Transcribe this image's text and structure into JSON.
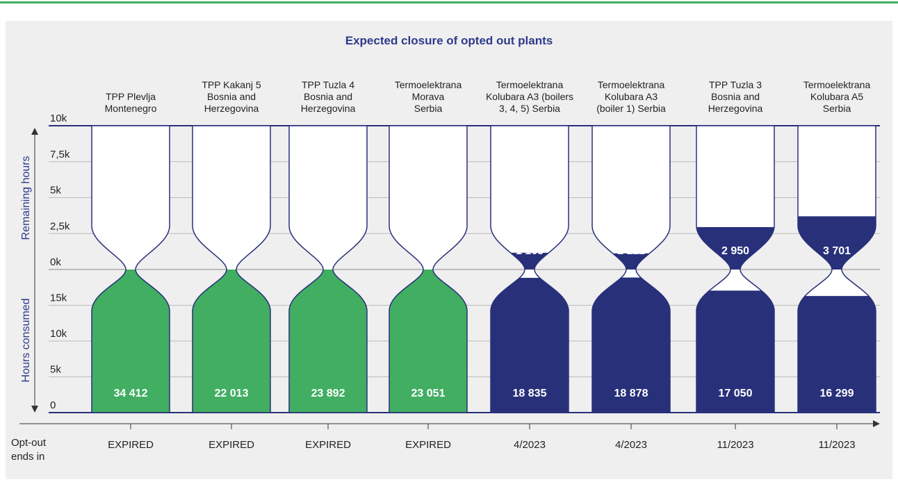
{
  "chart_data": {
    "type": "hourglass",
    "title": "Expected closure of opted out plants",
    "categories": [
      "TPP Plevlja\nMontenegro",
      "TPP Kakanj 5\nBosnia and\nHerzegovina",
      "TPP Tuzla 4\nBosnia and\nHerzegovina",
      "Termoelektrana\nMorava\nSerbia",
      "Termoelektrana\nKolubara A3 (boilers\n3, 4, 5) Serbia",
      "Termoelektrana\nKolubara A3\n(boiler 1) Serbia",
      "TPP Tuzla 3\nBosnia and\nHerzegovina",
      "Termoelektrana\nKolubara A5\nSerbia"
    ],
    "ylabel": "Remaining hours",
    "y2label": "Hours consumed",
    "xlabel": "Opt-out\nends in",
    "ylim": [
      0,
      10000
    ],
    "yticks": [
      {
        "value": 0,
        "label": "0k"
      },
      {
        "value": 2500,
        "label": "2,5k"
      },
      {
        "value": 5000,
        "label": "5k"
      },
      {
        "value": 7500,
        "label": "7,5k"
      },
      {
        "value": 10000,
        "label": "10k"
      }
    ],
    "y2lim": [
      0,
      20000
    ],
    "y2ticks": [
      0,
      {
        "value": 5000,
        "label": "5k"
      },
      {
        "value": 10000,
        "label": "10k"
      },
      {
        "value": 15000,
        "label": "15k"
      }
    ],
    "remaining": {
      "values": [
        null,
        null,
        null,
        null,
        1165,
        1122,
        2950,
        3701
      ],
      "value_labels": [
        null,
        null,
        null,
        null,
        "1 165",
        "1 122",
        "2 950",
        "3 701"
      ]
    },
    "consumed": {
      "values": [
        34412,
        22013,
        23892,
        23051,
        18835,
        18878,
        17050,
        16299
      ],
      "value_labels": [
        "34 412",
        "22 013",
        "23 892",
        "23 051",
        "18 835",
        "18 878",
        "17 050",
        "16 299"
      ]
    },
    "opt_out_ends": [
      "EXPIRED",
      "EXPIRED",
      "EXPIRED",
      "EXPIRED",
      "4/2023",
      "4/2023",
      "11/2023",
      "11/2023"
    ],
    "colors": [
      "#41ae62",
      "#41ae62",
      "#41ae62",
      "#41ae62",
      "#28307a",
      "#28307a",
      "#28307a",
      "#28307a"
    ]
  }
}
